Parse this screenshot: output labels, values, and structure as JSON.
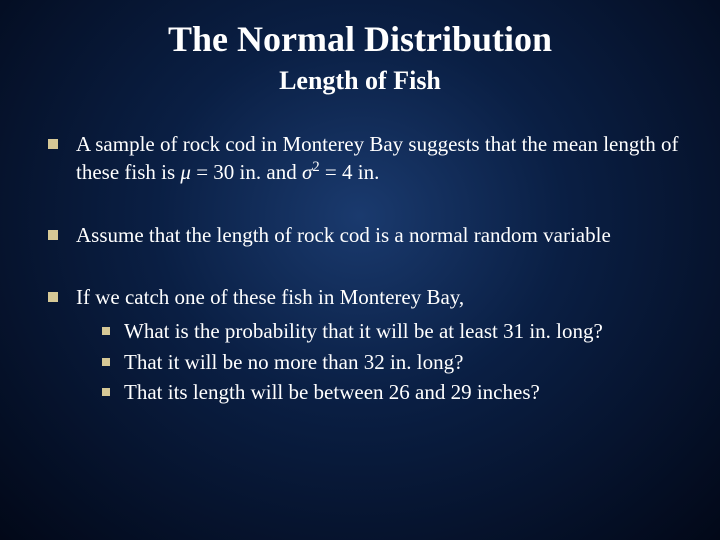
{
  "title": "The Normal Distribution",
  "subtitle": "Length of Fish",
  "bullets": {
    "b1_part1": "A sample of rock cod in Monterey Bay suggests that the mean length of these fish is ",
    "mu": "μ",
    "b1_part2": " = 30 in. and ",
    "sigma": "σ",
    "sq": "2",
    "b1_part3": " = 4 in.",
    "b2": "Assume that the length of rock cod is a normal random variable",
    "b3_intro": "If we catch one of these fish in Monterey Bay,",
    "b3_sub1": "What is the probability that it will be at least 31 in. long?",
    "b3_sub2": "That it will be no more than 32 in. long?",
    "b3_sub3": "That its length will be between 26 and 29 inches?"
  },
  "colors": {
    "bullet_color": "#d6c896",
    "text_color": "#ffffff"
  }
}
